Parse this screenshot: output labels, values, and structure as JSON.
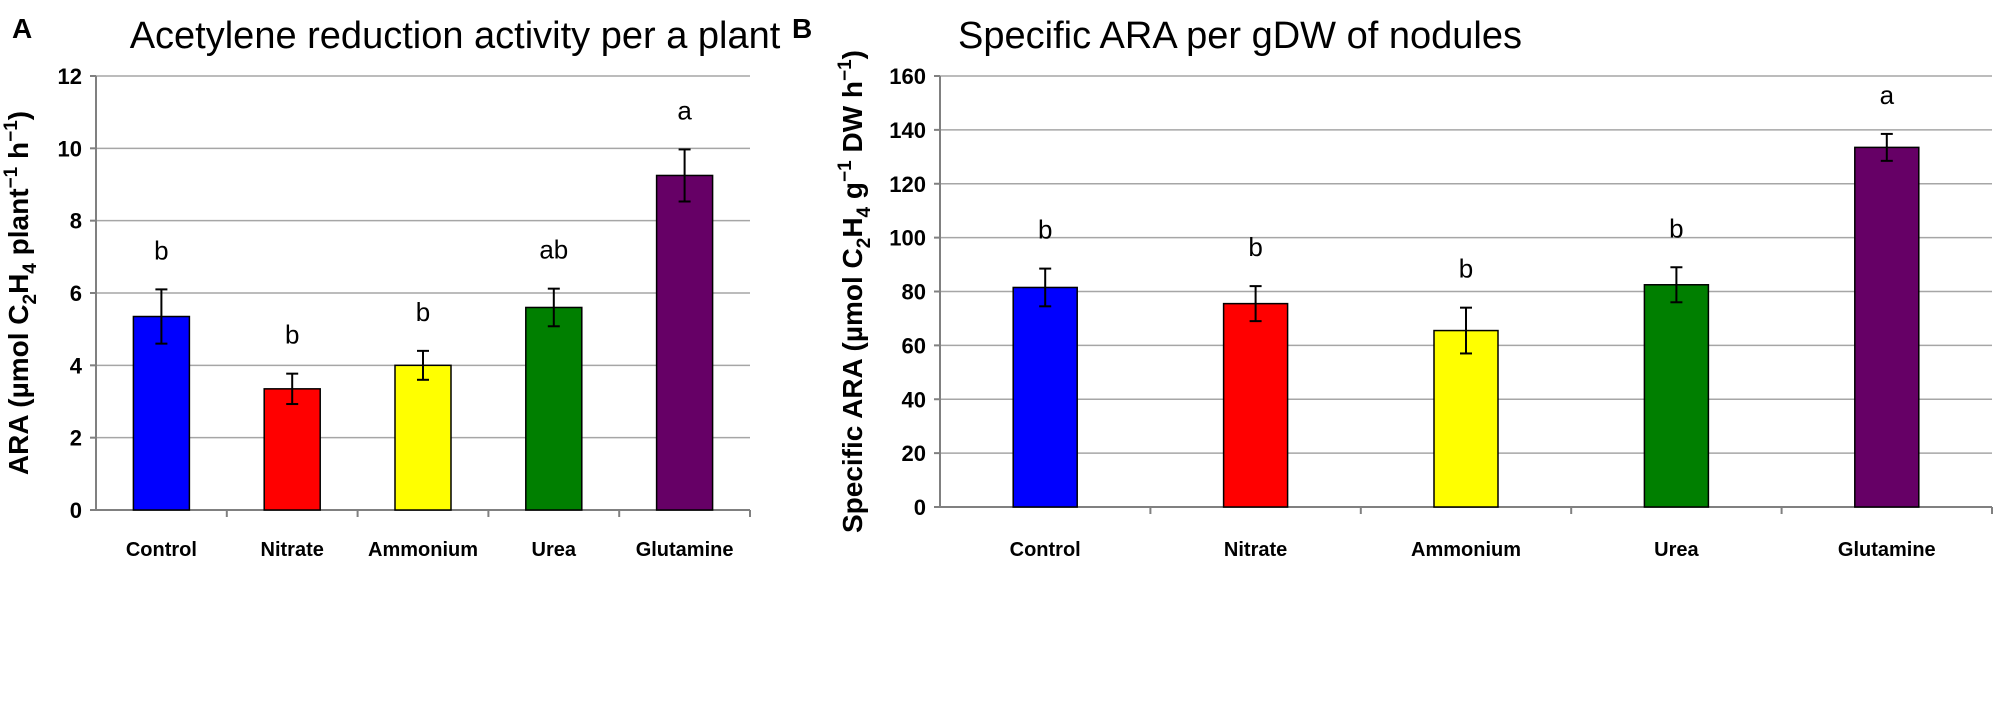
{
  "chart_data": [
    {
      "panel": "A",
      "type": "bar",
      "title": "Acetylene reduction activity per a plant",
      "ylabel": {
        "pre": "ARA  (µmol C",
        "sub1": "2",
        "mid1": "H",
        "sub2": "4",
        "mid2": " plant",
        "sup1": "−1",
        "mid3": " h",
        "sup2": "−1",
        "post": ")"
      },
      "categories": [
        "Control",
        "Nitrate",
        "Ammonium",
        "Urea",
        "Glutamine"
      ],
      "values": [
        5.35,
        3.35,
        4.0,
        5.6,
        9.25
      ],
      "errors": [
        0.75,
        0.42,
        0.4,
        0.52,
        0.72
      ],
      "significance": [
        "b",
        "b",
        "b",
        "ab",
        "a"
      ],
      "colors": [
        "#0000ff",
        "#ff0000",
        "#ffff00",
        "#007f00",
        "#660066"
      ],
      "ylim": [
        0,
        12
      ],
      "yticks": [
        0,
        2,
        4,
        6,
        8,
        10,
        12
      ],
      "ytick_labels": [
        "0",
        "2",
        "4",
        "6",
        "8",
        "10",
        "12"
      ]
    },
    {
      "panel": "B",
      "type": "bar",
      "title": "Specific ARA per gDW of nodules",
      "ylabel": {
        "pre": "Specific  ARA  (µmol C",
        "sub1": "2",
        "mid1": "H",
        "sub2": "4",
        "mid2": " g",
        "sup1": "−1",
        "mid3": " DW  h",
        "sup2": "−1",
        "post": ")"
      },
      "categories": [
        "Control",
        "Nitrate",
        "Ammonium",
        "Urea",
        "Glutamine"
      ],
      "values": [
        81.5,
        75.5,
        65.5,
        82.5,
        133.5
      ],
      "errors": [
        7,
        6.5,
        8.5,
        6.5,
        5
      ],
      "significance": [
        "b",
        "b",
        "b",
        "b",
        "a"
      ],
      "colors": [
        "#0000ff",
        "#ff0000",
        "#ffff00",
        "#007f00",
        "#660066"
      ],
      "ylim": [
        0,
        160
      ],
      "yticks": [
        0,
        20,
        40,
        60,
        80,
        100,
        120,
        140,
        160
      ],
      "ytick_labels": [
        "0",
        "20",
        "40",
        "60",
        "80",
        "100",
        "120",
        "140",
        "160"
      ]
    }
  ]
}
